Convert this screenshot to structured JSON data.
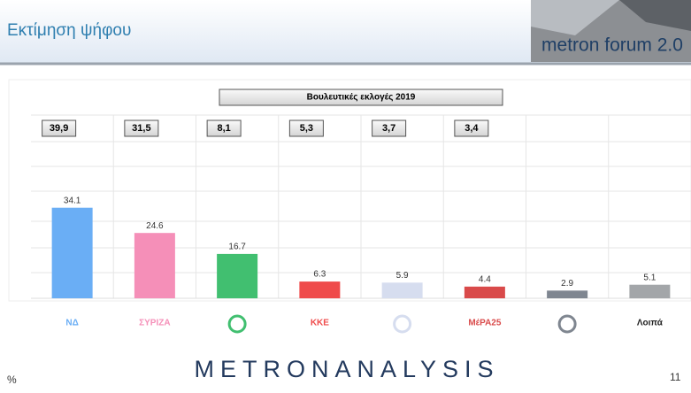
{
  "header": {
    "title": "Εκτίμηση ψήφου",
    "badge": "metron forum 2.0"
  },
  "chart_data": {
    "type": "bar",
    "title": "Βουλευτικές εκλογές 2019",
    "categories": [
      "ΝΔ",
      "ΣΥΡΙΖΑ",
      null,
      "ΚΚΕ",
      null,
      "ΜέΡΑ25",
      null,
      "Λοιπά"
    ],
    "values": [
      34.1,
      24.6,
      16.7,
      6.3,
      5.9,
      4.4,
      2.9,
      5.1
    ],
    "colors": [
      "#6aaef5",
      "#f58fb8",
      "#41bf70",
      "#ef4b4b",
      "#d6ddef",
      "#d94a4a",
      "#7f8690",
      "#a3a6a9"
    ],
    "election_2019": {
      "values": [
        39.9,
        31.5,
        8.1,
        5.3,
        3.7,
        3.4,
        null,
        null
      ],
      "value_labels": [
        "39,9",
        "31,5",
        "8,1",
        "5,3",
        "3,7",
        "3,4",
        null,
        null
      ]
    },
    "ylim": [
      0,
      60
    ]
  },
  "footer": {
    "brand": "METRONANALYSIS",
    "unit": "%",
    "page": "11"
  }
}
